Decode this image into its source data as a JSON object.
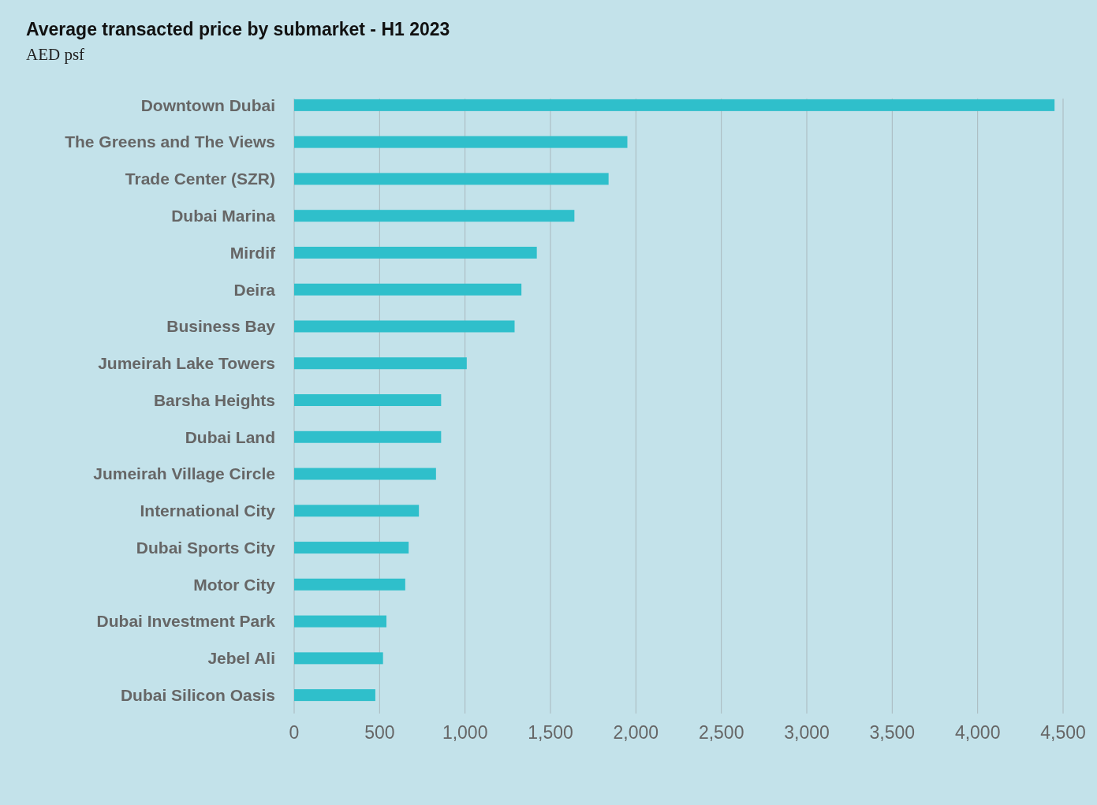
{
  "chart_data": {
    "type": "bar",
    "orientation": "horizontal",
    "title": "Average transacted price by submarket - H1 2023",
    "subtitle": "AED psf",
    "categories": [
      "Downtown Dubai",
      "The Greens and The Views",
      "Trade Center (SZR)",
      "Dubai Marina",
      "Mirdif",
      "Deira",
      "Business Bay",
      "Jumeirah Lake Towers",
      "Barsha Heights",
      "Dubai Land",
      "Jumeirah Village Circle",
      "International City",
      "Dubai Sports City",
      "Motor City",
      "Dubai Investment Park",
      "Jebel Ali",
      "Dubai Silicon Oasis"
    ],
    "values": [
      4450,
      1950,
      1840,
      1640,
      1420,
      1330,
      1290,
      1010,
      860,
      860,
      830,
      730,
      670,
      650,
      540,
      520,
      475
    ],
    "color": "#2fbfcb",
    "xlim": [
      0,
      4500
    ],
    "xticks": [
      0,
      {
        "value": 500,
        "label": "500"
      },
      {
        "value": 1000,
        "label": "1,000"
      },
      {
        "value": 1500,
        "label": "1,500"
      },
      {
        "value": 2000,
        "label": "2,000"
      },
      {
        "value": 2500,
        "label": "2,500"
      },
      {
        "value": 3000,
        "label": "3,000"
      },
      {
        "value": 3500,
        "label": "3,500"
      },
      {
        "value": 4000,
        "label": "4,000"
      },
      {
        "value": 4500,
        "label": "4,500"
      }
    ],
    "grid": "x"
  }
}
